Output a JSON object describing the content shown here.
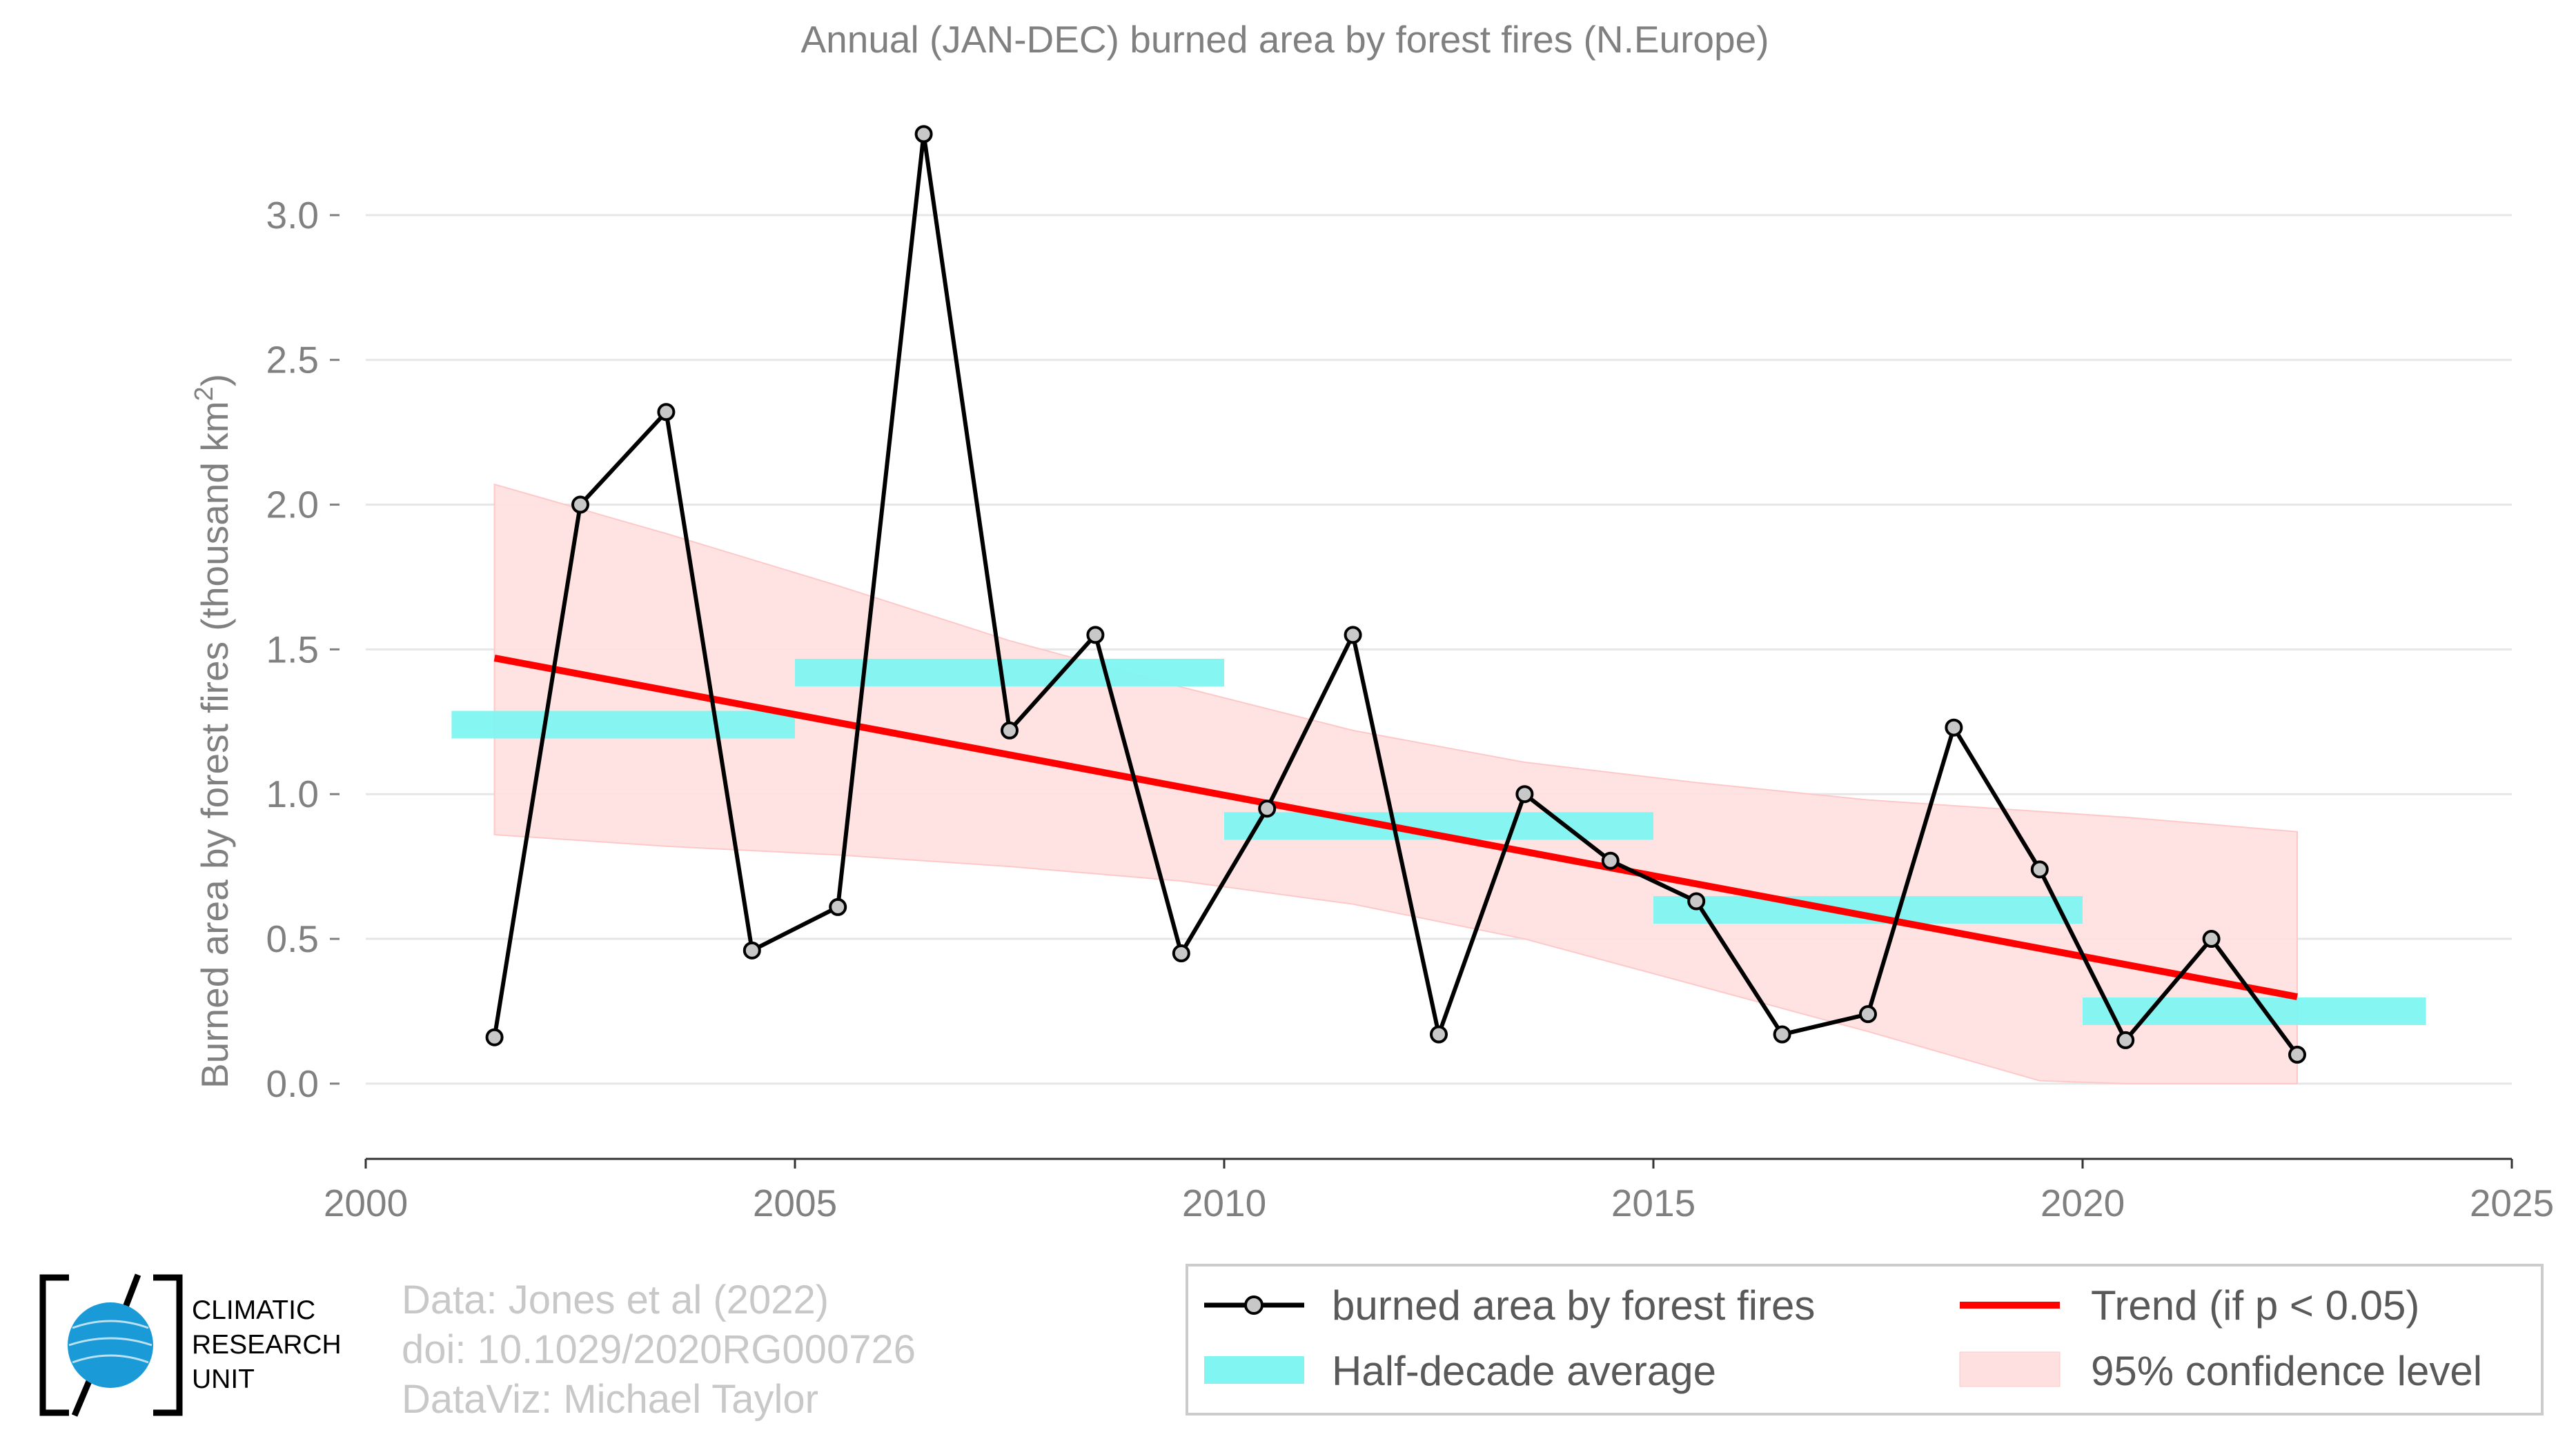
{
  "chart_data": {
    "type": "line",
    "title": "Annual (JAN-DEC) burned area by forest fires (N.Europe)",
    "ylabel_main": "Burned area by forest fires (thousand km",
    "ylabel_sup": "2",
    "ylabel_end": ")",
    "xlim": [
      2000,
      2025
    ],
    "ylim": [
      -0.26,
      3.35
    ],
    "x_ticks": [
      2000,
      2005,
      2010,
      2015,
      2020,
      2025
    ],
    "y_ticks": [
      0.0,
      0.5,
      1.0,
      1.5,
      2.0,
      2.5,
      3.0
    ],
    "y_tick_labels": [
      "0.0",
      "0.5",
      "1.0",
      "1.5",
      "2.0",
      "2.5",
      "3.0"
    ],
    "grid": "horizontal",
    "legend_position": "bottom",
    "series": [
      {
        "name": "burned area by forest fires",
        "color": "#000000",
        "x": [
          2001.5,
          2002.5,
          2003.5,
          2004.5,
          2005.5,
          2006.5,
          2007.5,
          2008.5,
          2009.5,
          2010.5,
          2011.5,
          2012.5,
          2013.5,
          2014.5,
          2015.5,
          2016.5,
          2017.5,
          2018.5,
          2019.5,
          2020.5,
          2021.5,
          2022.5
        ],
        "y": [
          0.16,
          2.0,
          2.32,
          0.46,
          0.61,
          3.28,
          1.22,
          1.55,
          0.45,
          0.95,
          1.55,
          0.17,
          1.0,
          0.77,
          0.63,
          0.17,
          0.24,
          1.23,
          0.74,
          0.15,
          0.5,
          0.1
        ]
      },
      {
        "name": "Half-decade average",
        "color": "#80f5f2",
        "segments": [
          {
            "x0": 2001.0,
            "x1": 2005.0,
            "y": 1.24
          },
          {
            "x0": 2005.0,
            "x1": 2010.0,
            "y": 1.42
          },
          {
            "x0": 2010.0,
            "x1": 2015.0,
            "y": 0.89
          },
          {
            "x0": 2015.0,
            "x1": 2020.0,
            "y": 0.6
          },
          {
            "x0": 2020.0,
            "x1": 2024.0,
            "y": 0.25
          }
        ]
      },
      {
        "name": "Trend (if p < 0.05)",
        "color": "#ff0000",
        "x": [
          2001.5,
          2022.5
        ],
        "y": [
          1.47,
          0.3
        ]
      },
      {
        "name": "95% confidence level",
        "color": "#ffe0e0",
        "x": [
          2001.5,
          2003.5,
          2005.5,
          2007.5,
          2009.5,
          2011.5,
          2013.5,
          2015.5,
          2017.5,
          2019.5,
          2020.5,
          2022.5
        ],
        "upper": [
          2.07,
          1.9,
          1.72,
          1.53,
          1.37,
          1.22,
          1.11,
          1.04,
          0.98,
          0.94,
          0.92,
          0.87
        ],
        "lower": [
          0.86,
          0.82,
          0.79,
          0.75,
          0.7,
          0.62,
          0.5,
          0.34,
          0.18,
          0.01,
          0.0,
          0.0
        ]
      }
    ]
  },
  "legend": {
    "line_label": "burned area by forest fires",
    "half_decade_label": "Half-decade average",
    "trend_label": "Trend (if p < 0.05)",
    "ci_label": "95% confidence level"
  },
  "credits": {
    "line1": "Data: Jones et al (2022)",
    "line2": "doi: 10.1029/2020RG000726",
    "line3": "DataViz: Michael Taylor"
  },
  "logo": {
    "line1": "CLIMATIC",
    "line2": "RESEARCH",
    "line3": "UNIT",
    "globe_color": "#1a9ad6"
  }
}
